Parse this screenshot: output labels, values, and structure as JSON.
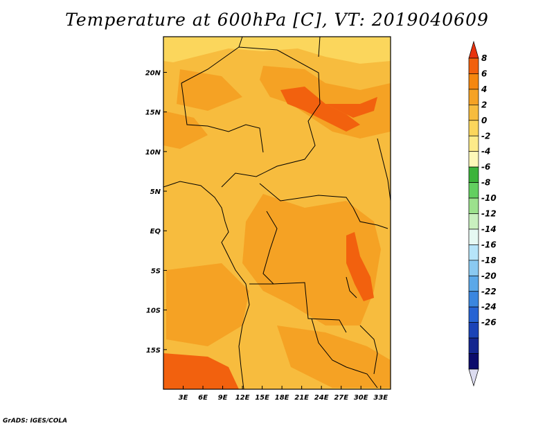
{
  "title": "Temperature at 600hPa [C], VT: 2019040609",
  "footer": "GrADS: IGES/COLA",
  "map": {
    "lon_range": [
      0,
      34.5
    ],
    "lat_range": [
      -20,
      24.5
    ],
    "x_ticks": [
      {
        "value": 3,
        "label": "3E"
      },
      {
        "value": 6,
        "label": "6E"
      },
      {
        "value": 9,
        "label": "9E"
      },
      {
        "value": 12,
        "label": "12E"
      },
      {
        "value": 15,
        "label": "15E"
      },
      {
        "value": 18,
        "label": "18E"
      },
      {
        "value": 21,
        "label": "21E"
      },
      {
        "value": 24,
        "label": "24E"
      },
      {
        "value": 27,
        "label": "27E"
      },
      {
        "value": 30,
        "label": "30E"
      },
      {
        "value": 33,
        "label": "33E"
      }
    ],
    "y_ticks": [
      {
        "value": 20,
        "label": "20N"
      },
      {
        "value": 15,
        "label": "15N"
      },
      {
        "value": 10,
        "label": "10N"
      },
      {
        "value": 5,
        "label": "5N"
      },
      {
        "value": 0,
        "label": "EQ"
      },
      {
        "value": -5,
        "label": "5S"
      },
      {
        "value": -10,
        "label": "10S"
      },
      {
        "value": -15,
        "label": "15S"
      }
    ]
  },
  "colorbar": {
    "labels": [
      "8",
      "6",
      "4",
      "2",
      "0",
      "-2",
      "-4",
      "-6",
      "-8",
      "-10",
      "-12",
      "-14",
      "-16",
      "-18",
      "-20",
      "-22",
      "-24",
      "-26"
    ],
    "colors": [
      "#e8320e",
      "#f2610e",
      "#f5870f",
      "#f5a224",
      "#f7bc3e",
      "#fbd65c",
      "#fdea89",
      "#fdf8b8",
      "#3bb33a",
      "#63cf60",
      "#9ce18d",
      "#c9f0bf",
      "#e6f9f3",
      "#b6e4f9",
      "#8ac9f1",
      "#5ba8e8",
      "#3a86df",
      "#2663d3",
      "#1a43b7",
      "#14268f",
      "#0c0c6b",
      "#dcdcf0"
    ]
  }
}
